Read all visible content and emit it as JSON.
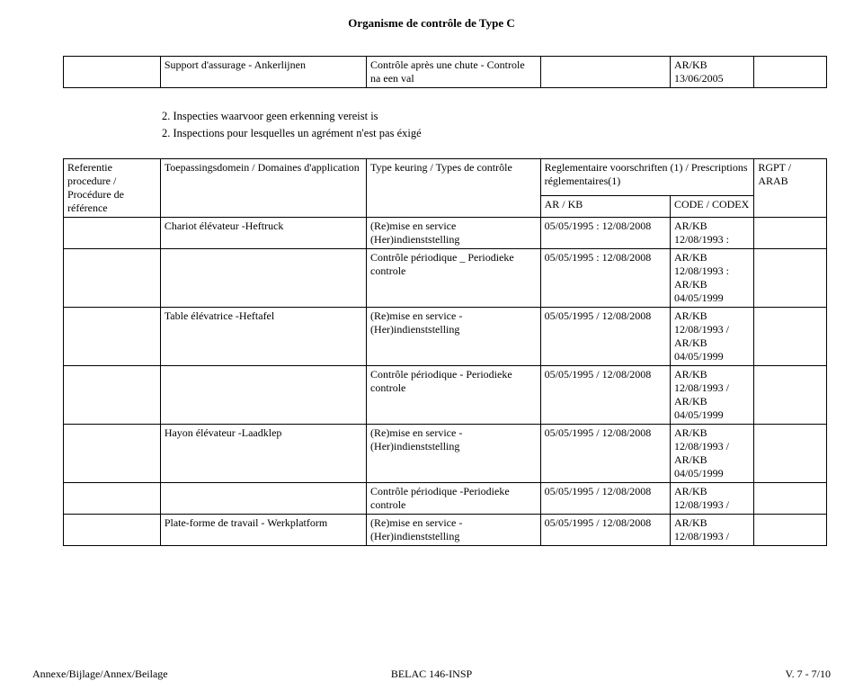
{
  "page_title": "Organisme de contrôle de Type C",
  "small_table": {
    "col1": "Support d'assurage - Ankerlijnen",
    "col2": "Contrôle après une chute - Controle na een val",
    "col3": "",
    "col4": "AR/KB 13/06/2005",
    "col5": ""
  },
  "list": {
    "item1": "2. Inspecties waarvoor geen erkenning vereist is",
    "item2": "2. Inspections pour lesquelles un agrément n'est pas éxigé"
  },
  "main_header": {
    "ref": "Referentie procedure / Procédure de référence",
    "domain": "Toepassingsdomein / Domaines d'application",
    "type": "Type keuring / Types de contrôle",
    "reg_title": "Reglementaire voorschriften (1) / Prescriptions réglementaires(1)",
    "arkb": "AR / KB",
    "code": "CODE / CODEX",
    "rgpt": "RGPT / ARAB"
  },
  "rows": [
    {
      "ref": "",
      "domain": "Chariot élévateur -Heftruck",
      "type": "(Re)mise en service (Her)indienststelling",
      "date": "05/05/1995 : 12/08/2008",
      "code": "AR/KB 12/08/1993 :",
      "rgpt": ""
    },
    {
      "ref": "",
      "domain": "",
      "type": "Contrôle périodique _ Periodieke controle",
      "date": "05/05/1995 : 12/08/2008",
      "code": "AR/KB 12/08/1993 : AR/KB 04/05/1999",
      "rgpt": ""
    },
    {
      "ref": "",
      "domain": "Table élévatrice -Heftafel",
      "type": "(Re)mise en service - (Her)indienststelling",
      "date": "05/05/1995 / 12/08/2008",
      "code": "AR/KB 12/08/1993 / AR/KB 04/05/1999",
      "rgpt": ""
    },
    {
      "ref": "",
      "domain": "",
      "type": "Contrôle périodique - Periodieke controle",
      "date": "05/05/1995 / 12/08/2008",
      "code": "AR/KB 12/08/1993 / AR/KB 04/05/1999",
      "rgpt": ""
    },
    {
      "ref": "",
      "domain": "Hayon élévateur -Laadklep",
      "type": "(Re)mise en service - (Her)indienststelling",
      "date": "05/05/1995 / 12/08/2008",
      "code": "AR/KB 12/08/1993 / AR/KB 04/05/1999",
      "rgpt": ""
    },
    {
      "ref": "",
      "domain": "",
      "type": "Contrôle périodique -Periodieke controle",
      "date": "05/05/1995 / 12/08/2008",
      "code": "AR/KB 12/08/1993 /",
      "rgpt": ""
    },
    {
      "ref": "",
      "domain": "Plate-forme de travail - Werkplatform",
      "type": "(Re)mise en service - (Her)indienststelling",
      "date": "05/05/1995 / 12/08/2008",
      "code": "AR/KB 12/08/1993 /",
      "rgpt": ""
    }
  ],
  "footer": {
    "left": "Annexe/Bijlage/Annex/Beilage",
    "center": "BELAC 146-INSP",
    "right": "V. 7 - 7/10"
  }
}
